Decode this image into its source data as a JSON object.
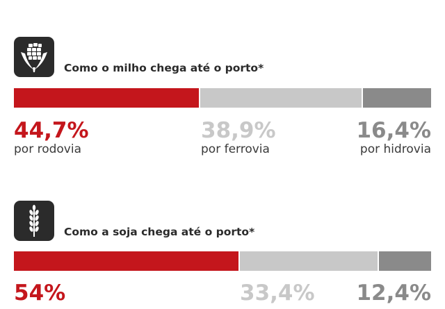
{
  "colors": {
    "rodovia": "#c4161c",
    "ferrovia": "#c8c8c8",
    "hidrovia": "#8a8a8a"
  },
  "chart_data": [
    {
      "type": "bar",
      "stacked": true,
      "orientation": "horizontal",
      "icon": "corn-icon",
      "title": "Como o milho chega até o porto*",
      "series": [
        {
          "name": "por rodovia",
          "value": 44.7,
          "label": "44,7%"
        },
        {
          "name": "por ferrovia",
          "value": 38.9,
          "label": "38,9%"
        },
        {
          "name": "por hidrovia",
          "value": 16.4,
          "label": "16,4%"
        }
      ]
    },
    {
      "type": "bar",
      "stacked": true,
      "orientation": "horizontal",
      "icon": "wheat-icon",
      "title": "Como a soja chega até o porto*",
      "series": [
        {
          "name": "",
          "value": 54,
          "label": "54%"
        },
        {
          "name": "",
          "value": 33.4,
          "label": "33,4%"
        },
        {
          "name": "",
          "value": 12.4,
          "label": "12,4%"
        }
      ]
    }
  ]
}
